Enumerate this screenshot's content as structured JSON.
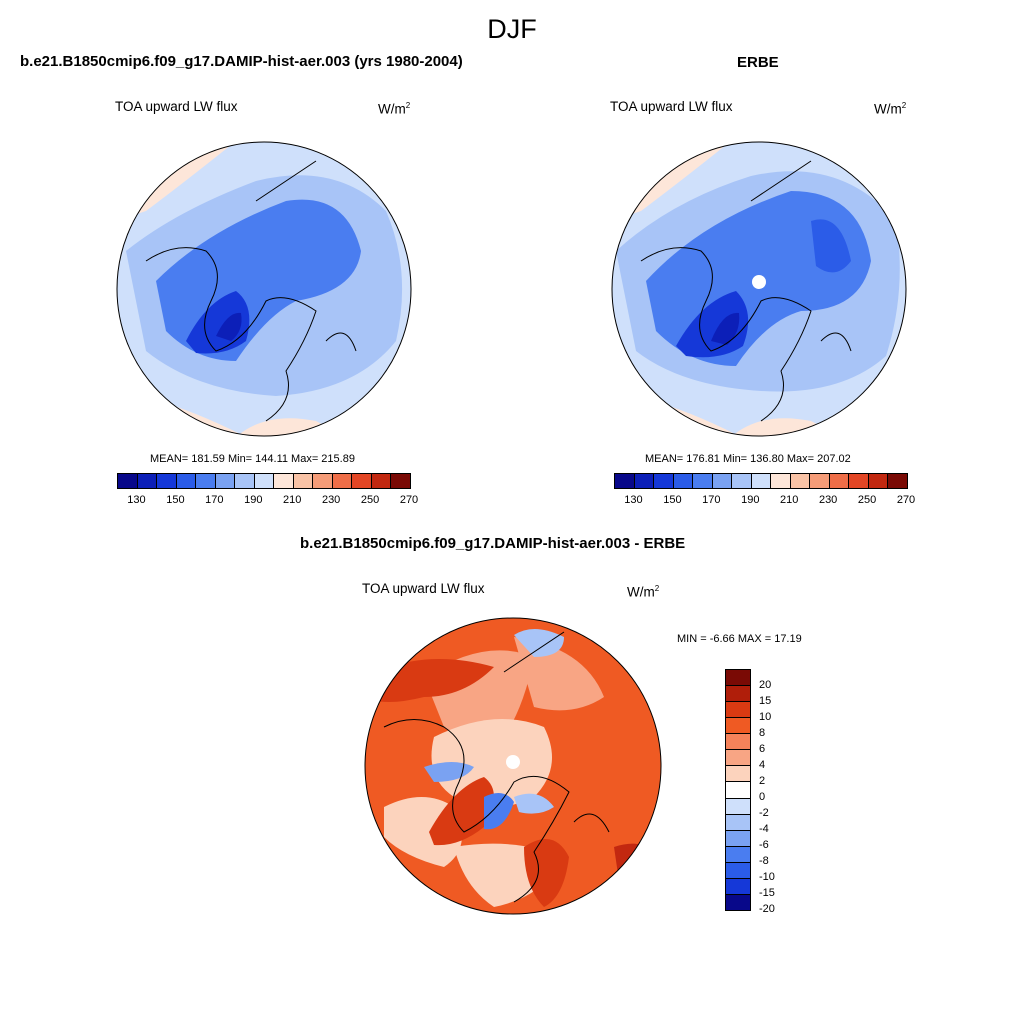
{
  "season": "DJF",
  "panels": [
    {
      "title": "b.e21.B1850cmip6.f09_g17.DAMIP-hist-aer.003 (yrs 1980-2004)",
      "variable": "TOA upward LW flux",
      "units": "W/m",
      "units_sup": "2",
      "stats": "MEAN= 181.59  Min= 144.11  Max= 215.89",
      "colorbar_ticks": [
        "130",
        "150",
        "170",
        "190",
        "210",
        "230",
        "250",
        "270"
      ]
    },
    {
      "title": "ERBE",
      "variable": "TOA upward LW flux",
      "units": "W/m",
      "units_sup": "2",
      "stats": "MEAN= 176.81  Min= 136.80  Max= 207.02",
      "colorbar_ticks": [
        "130",
        "150",
        "170",
        "190",
        "210",
        "230",
        "250",
        "270"
      ]
    }
  ],
  "diff": {
    "title": "b.e21.B1850cmip6.f09_g17.DAMIP-hist-aer.003 - ERBE",
    "variable": "TOA upward LW flux",
    "units": "W/m",
    "units_sup": "2",
    "stats": "MIN =  -6.66 MAX =  17.19",
    "levels": [
      "20",
      "15",
      "10",
      "8",
      "6",
      "4",
      "2",
      "0",
      "-2",
      "-4",
      "-6",
      "-8",
      "-10",
      "-15",
      "-20"
    ]
  },
  "colors": {
    "abs_scale": [
      "#08088a",
      "#0c1fb8",
      "#1538d8",
      "#2b5ce8",
      "#4a7df0",
      "#7aa2f2",
      "#a8c4f7",
      "#cfe0fb",
      "#fde6d9",
      "#f9c3a6",
      "#f59c78",
      "#ef6e48",
      "#e34625",
      "#c22810",
      "#7a0a05"
    ],
    "diff_scale": [
      "#7a0a05",
      "#b01e0a",
      "#d93a12",
      "#ef5a23",
      "#f5825a",
      "#f8a584",
      "#fcd3bd",
      "#ffffff",
      "#cfe0fb",
      "#a8c4f7",
      "#7aa2f2",
      "#4a7df0",
      "#2b5ce8",
      "#1538d8",
      "#08088a"
    ],
    "model_bg": "#cfe0fb",
    "model_mid": "#a8c4f7",
    "model_core": "#4a7df0",
    "model_deep": "#1538d8",
    "warm_edge": "#fde6d9",
    "diff_bg": "#ef5a23",
    "diff_light": "#f8a584",
    "diff_pale": "#fcd3bd",
    "diff_dark": "#c22810",
    "diff_blue": "#7aa2f2"
  }
}
